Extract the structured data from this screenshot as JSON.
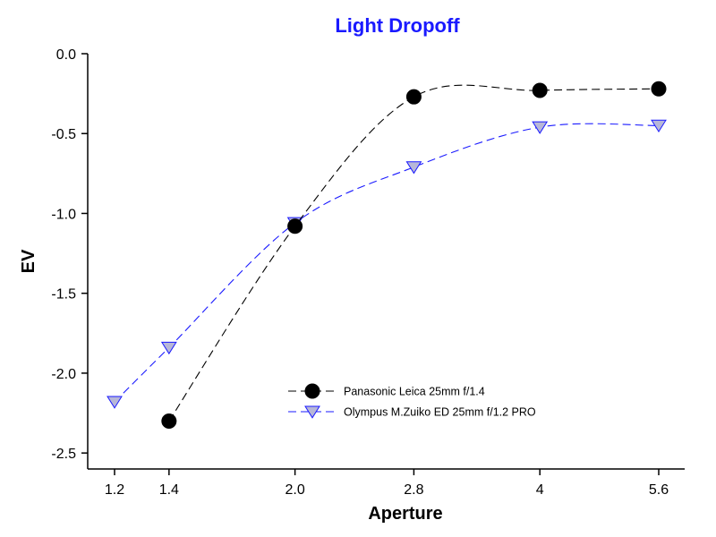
{
  "chart_data": {
    "type": "line",
    "title": "Light Dropoff",
    "title_color": "#1a1aff",
    "xlabel": "Aperture",
    "ylabel": "EV",
    "x_tick_labels": [
      "1.2",
      "1.4",
      "2.0",
      "2.8",
      "4",
      "5.6"
    ],
    "y_tick_labels": [
      "0.0",
      "-0.5",
      "-1.0",
      "-1.5",
      "-2.0",
      "-2.5"
    ],
    "y_ticks": [
      0.0,
      -0.5,
      -1.0,
      -1.5,
      -2.0,
      -2.5
    ],
    "ylim": [
      -2.6,
      0.0
    ],
    "x_scale": "log2-f-stop",
    "legend_position": "lower-center",
    "series": [
      {
        "name": "Panasonic Leica 25mm f/1.4",
        "color": "#000000",
        "marker": "circle",
        "marker_fill": "#000000",
        "x": [
          1.4,
          2.0,
          2.8,
          4,
          5.6
        ],
        "y": [
          -2.3,
          -1.08,
          -0.27,
          -0.23,
          -0.22
        ]
      },
      {
        "name": "Olympus M.Zuiko ED 25mm f/1.2 PRO",
        "color": "#1a1aff",
        "marker": "triangle-down",
        "marker_fill": "#b7b7d8",
        "x": [
          1.2,
          1.4,
          2.0,
          2.8,
          4,
          5.6
        ],
        "y": [
          -2.18,
          -1.84,
          -1.06,
          -0.71,
          -0.46,
          -0.45
        ]
      }
    ]
  }
}
